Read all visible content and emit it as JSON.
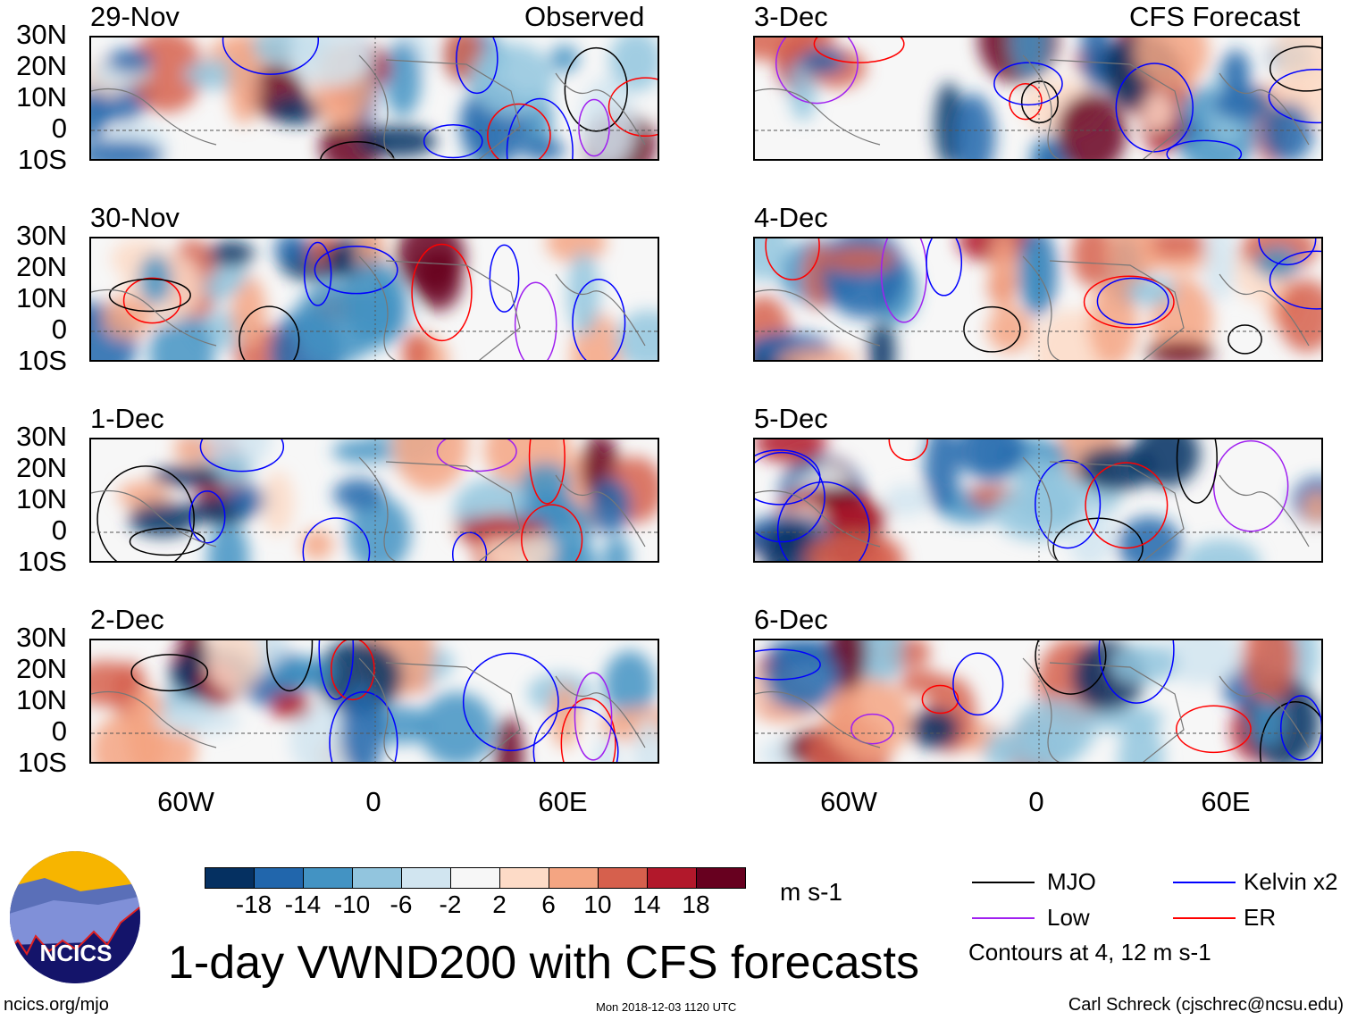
{
  "header": {
    "observed_label": "Observed",
    "forecast_label": "CFS Forecast"
  },
  "panels": {
    "observed": [
      "29-Nov",
      "30-Nov",
      "1-Dec",
      "2-Dec"
    ],
    "forecast": [
      "3-Dec",
      "4-Dec",
      "5-Dec",
      "6-Dec"
    ]
  },
  "axes": {
    "lat_ticks": [
      "30N",
      "20N",
      "10N",
      "0",
      "10S"
    ],
    "lon_ticks": [
      "60W",
      "0",
      "60E"
    ]
  },
  "colorbar": {
    "labels": [
      "-18",
      "-14",
      "-10",
      "-6",
      "-2",
      "2",
      "6",
      "10",
      "14",
      "18"
    ],
    "colors": [
      "#053061",
      "#2166ac",
      "#4393c3",
      "#92c5de",
      "#d1e5f0",
      "#f7f7f7",
      "#fddbc7",
      "#f4a582",
      "#d6604d",
      "#b2182b",
      "#67001f"
    ],
    "units": "m s-1"
  },
  "legend": {
    "items": [
      {
        "label": "MJO",
        "color": "#000000"
      },
      {
        "label": "Kelvin x2",
        "color": "#0000ff"
      },
      {
        "label": "Low",
        "color": "#a020f0"
      },
      {
        "label": "ER",
        "color": "#ff0000"
      }
    ],
    "contours_note": "Contours at 4, 12 m s-1"
  },
  "title": "1-day VWND200 with CFS forecasts",
  "logo_text": "NCICS",
  "footer": {
    "left": "ncics.org/mjo",
    "center": "Mon 2018-12-03 1120 UTC",
    "right": "Carl Schreck (cjschrec@ncsu.edu)"
  }
}
